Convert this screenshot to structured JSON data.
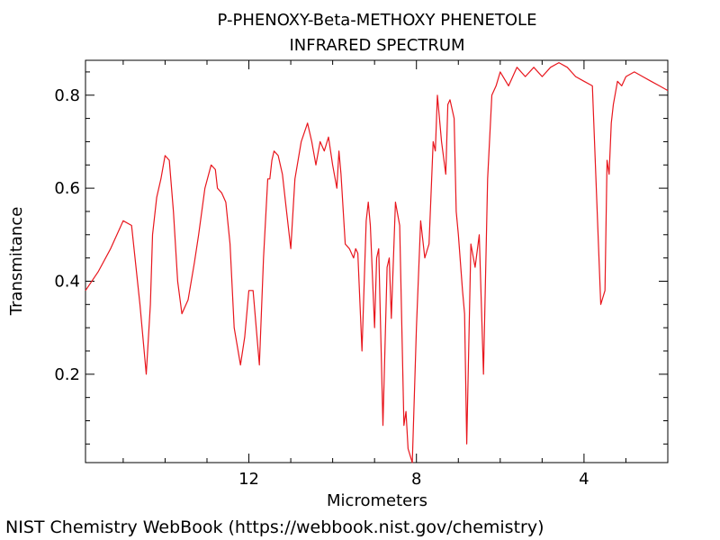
{
  "chart_data": {
    "type": "line",
    "title": "P-PHENOXY-Beta-METHOXY PHENETOLE",
    "subtitle": "INFRARED SPECTRUM",
    "xlabel": "Micrometers",
    "ylabel": "Transmitance",
    "xlim": [
      15.9,
      2.0
    ],
    "ylim": [
      0.01,
      0.875
    ],
    "x_reversed": true,
    "grid": false,
    "x_ticks": [
      12,
      8,
      4
    ],
    "y_ticks": [
      0.2,
      0.4,
      0.6,
      0.8
    ],
    "series_color": "#e8161d",
    "series": [
      {
        "x": [
          15.9,
          15.6,
          15.3,
          15.0,
          14.8,
          14.6,
          14.45,
          14.35,
          14.3,
          14.2,
          14.1,
          14.0,
          13.9,
          13.8,
          13.7,
          13.6,
          13.45,
          13.3,
          13.2,
          13.05,
          12.9,
          12.8,
          12.75,
          12.65,
          12.55,
          12.45,
          12.35,
          12.2,
          12.1,
          12.0,
          11.9,
          11.75,
          11.65,
          11.55,
          11.5,
          11.45,
          11.4,
          11.3,
          11.2,
          11.1,
          11.0,
          10.9,
          10.75,
          10.6,
          10.5,
          10.4,
          10.3,
          10.2,
          10.1,
          10.0,
          9.9,
          9.85,
          9.8,
          9.7,
          9.6,
          9.5,
          9.45,
          9.4,
          9.3,
          9.2,
          9.15,
          9.1,
          9.0,
          8.95,
          8.9,
          8.8,
          8.7,
          8.65,
          8.6,
          8.5,
          8.4,
          8.3,
          8.25,
          8.2,
          8.1,
          8.0,
          7.9,
          7.8,
          7.7,
          7.6,
          7.55,
          7.5,
          7.4,
          7.3,
          7.25,
          7.2,
          7.1,
          7.05,
          7.0,
          6.9,
          6.85,
          6.8,
          6.7,
          6.6,
          6.5,
          6.4,
          6.3,
          6.2,
          6.1,
          6.0,
          5.8,
          5.6,
          5.4,
          5.2,
          5.0,
          4.8,
          4.6,
          4.4,
          4.2,
          4.0,
          3.8,
          3.6,
          3.5,
          3.45,
          3.4,
          3.35,
          3.3,
          3.2,
          3.1,
          3.0,
          2.8,
          2.6,
          2.4,
          2.2,
          2.0
        ],
        "values": [
          0.38,
          0.42,
          0.47,
          0.53,
          0.52,
          0.35,
          0.2,
          0.35,
          0.5,
          0.58,
          0.62,
          0.67,
          0.66,
          0.55,
          0.4,
          0.33,
          0.36,
          0.44,
          0.5,
          0.6,
          0.65,
          0.64,
          0.6,
          0.59,
          0.57,
          0.48,
          0.3,
          0.22,
          0.28,
          0.38,
          0.38,
          0.22,
          0.45,
          0.62,
          0.62,
          0.66,
          0.68,
          0.67,
          0.63,
          0.55,
          0.47,
          0.62,
          0.7,
          0.74,
          0.7,
          0.65,
          0.7,
          0.68,
          0.71,
          0.65,
          0.6,
          0.68,
          0.63,
          0.48,
          0.47,
          0.45,
          0.47,
          0.46,
          0.25,
          0.53,
          0.57,
          0.52,
          0.3,
          0.45,
          0.47,
          0.09,
          0.43,
          0.45,
          0.32,
          0.57,
          0.52,
          0.09,
          0.12,
          0.04,
          0.01,
          0.3,
          0.53,
          0.45,
          0.48,
          0.7,
          0.68,
          0.8,
          0.7,
          0.63,
          0.78,
          0.79,
          0.75,
          0.55,
          0.5,
          0.38,
          0.33,
          0.05,
          0.48,
          0.43,
          0.5,
          0.2,
          0.62,
          0.8,
          0.82,
          0.85,
          0.82,
          0.86,
          0.84,
          0.86,
          0.84,
          0.86,
          0.87,
          0.86,
          0.84,
          0.83,
          0.82,
          0.35,
          0.38,
          0.66,
          0.63,
          0.74,
          0.78,
          0.83,
          0.82,
          0.84,
          0.85,
          0.84,
          0.83,
          0.82,
          0.81
        ]
      }
    ]
  },
  "footer": {
    "credit": "NIST Chemistry WebBook (https://webbook.nist.gov/chemistry)"
  }
}
